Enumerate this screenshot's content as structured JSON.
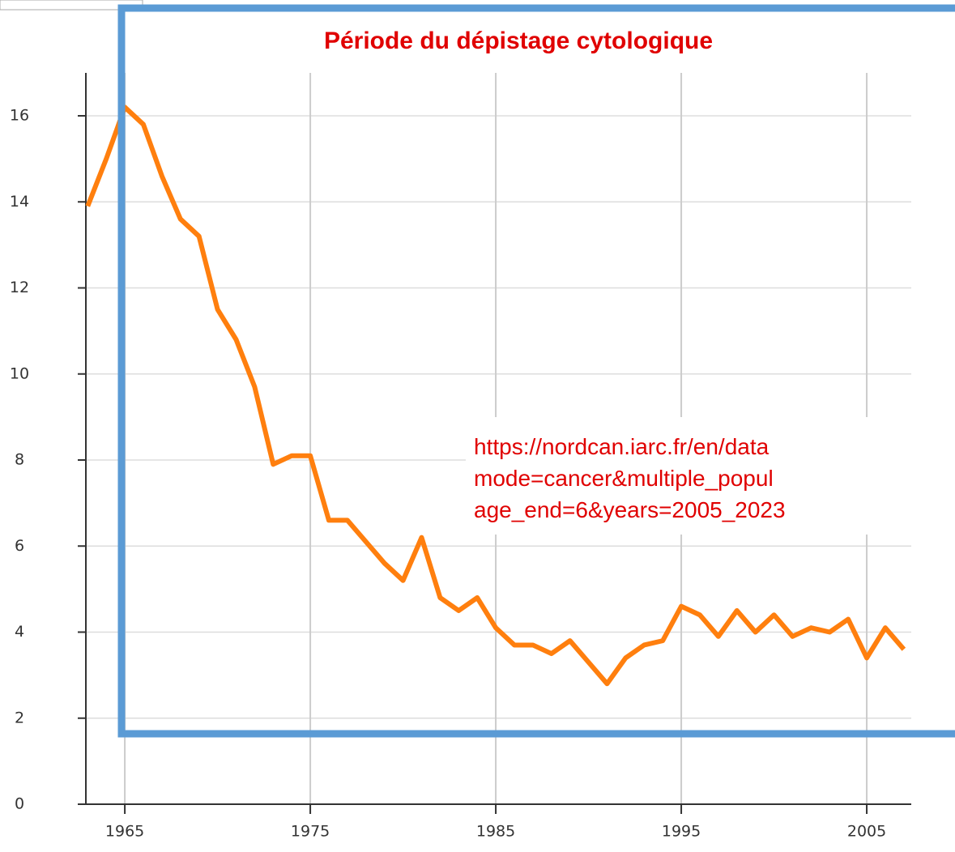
{
  "chart_data": {
    "type": "line",
    "title": "Période du dépistage cytologique",
    "annotation": [
      "https://nordcan.iarc.fr/en/data",
      "mode=cancer&multiple_popul",
      "age_end=6&years=2005_2023"
    ],
    "x": [
      1963,
      1964,
      1965,
      1966,
      1967,
      1968,
      1969,
      1970,
      1971,
      1972,
      1973,
      1974,
      1975,
      1976,
      1977,
      1978,
      1979,
      1980,
      1981,
      1982,
      1983,
      1984,
      1985,
      1986,
      1987,
      1988,
      1989,
      1990,
      1991,
      1992,
      1993,
      1994,
      1995,
      1996,
      1997,
      1998,
      1999,
      2000,
      2001,
      2002,
      2003,
      2004,
      2005,
      2006,
      2007
    ],
    "series": [
      {
        "name": null,
        "color": "#ff7f0e",
        "values": [
          13.9,
          15.0,
          16.2,
          15.8,
          14.6,
          13.6,
          13.2,
          11.5,
          10.8,
          9.7,
          7.9,
          8.1,
          8.1,
          6.6,
          6.6,
          6.1,
          5.6,
          5.2,
          6.2,
          4.8,
          4.5,
          4.8,
          4.1,
          3.7,
          3.7,
          3.5,
          3.8,
          3.3,
          2.8,
          3.4,
          3.7,
          3.8,
          4.6,
          4.4,
          3.9,
          4.5,
          4.0,
          4.4,
          3.9,
          4.1,
          4.0,
          4.3,
          3.4,
          4.1,
          3.6
        ]
      }
    ],
    "xlim": [
      1962.9,
      2007.4
    ],
    "xticks": [
      1965,
      1975,
      1985,
      1995,
      2005
    ],
    "ylim": [
      0,
      17
    ],
    "yticks": [
      0,
      2,
      4,
      6,
      8,
      10,
      12,
      14,
      16
    ],
    "grid": true
  }
}
